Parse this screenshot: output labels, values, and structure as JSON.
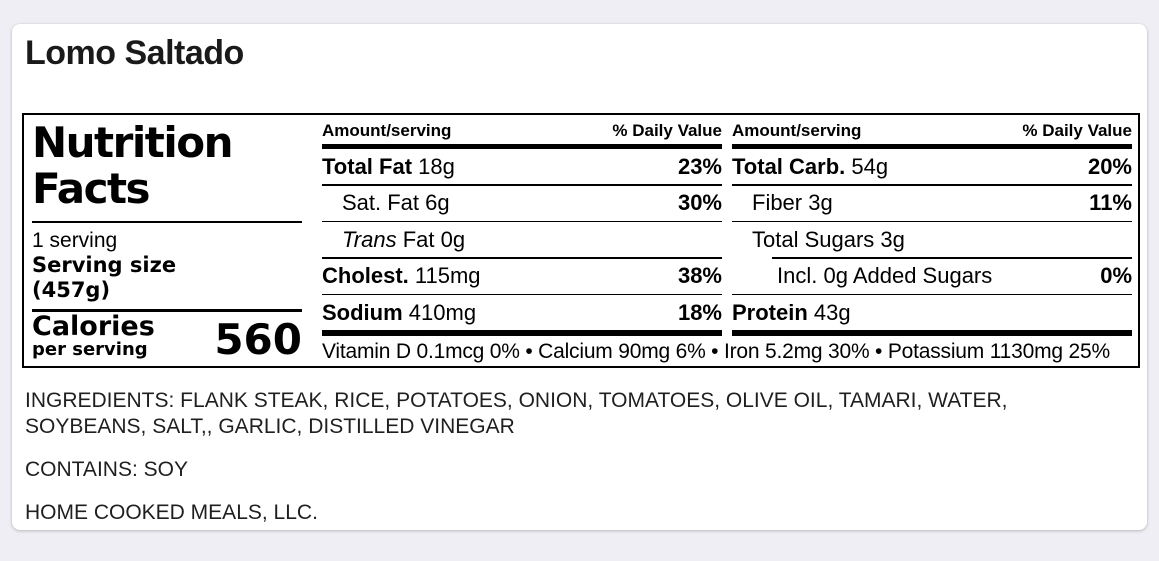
{
  "title": "Lomo Saltado",
  "colors": {
    "page_background": "#efeef4",
    "card_background": "#ffffff",
    "label_ink": "#000000"
  },
  "nutrition": {
    "heading_line1": "Nutrition",
    "heading_line2": "Facts",
    "servings": "1 serving",
    "serving_size_label": "Serving size",
    "serving_size_value": "(457g)",
    "calories_label": "Calories",
    "calories_sublabel": "per serving",
    "calories_value": "560",
    "col_header_amount": "Amount/serving",
    "col_header_dv": "% Daily Value",
    "left_col_rows": [
      {
        "label": "Total Fat",
        "bold": true,
        "italic": false,
        "rest": "18g",
        "dv": "23%",
        "indent": 0
      },
      {
        "label": "Sat. Fat",
        "bold": false,
        "italic": false,
        "rest": "6g",
        "dv": "30%",
        "indent": 1
      },
      {
        "label": "Trans",
        "bold": false,
        "italic": true,
        "rest": "Fat 0g",
        "dv": "",
        "indent": 1
      },
      {
        "label": "Cholest.",
        "bold": true,
        "italic": false,
        "rest": "115mg",
        "dv": "38%",
        "indent": 0
      },
      {
        "label": "Sodium",
        "bold": true,
        "italic": false,
        "rest": "410mg",
        "dv": "18%",
        "indent": 0
      }
    ],
    "right_col_rows": [
      {
        "label": "Total Carb.",
        "bold": true,
        "italic": false,
        "rest": "54g",
        "dv": "20%",
        "indent": 0
      },
      {
        "label": "Fiber",
        "bold": false,
        "italic": false,
        "rest": "3g",
        "dv": "11%",
        "indent": 1
      },
      {
        "label": "Total Sugars",
        "bold": false,
        "italic": false,
        "rest": "3g",
        "dv": "",
        "indent": 1
      },
      {
        "label": "Incl. 0g Added Sugars",
        "bold": false,
        "italic": false,
        "rest": "",
        "dv": "0%",
        "indent": 2,
        "rule_above_indent": 40
      },
      {
        "label": "Protein",
        "bold": true,
        "italic": false,
        "rest": "43g",
        "dv": "",
        "indent": 0
      }
    ],
    "micronutrients": "Vitamin D 0.1mcg 0% • Calcium 90mg 6% • Iron 5.2mg 30% • Potassium 1130mg 25%"
  },
  "ingredients": "INGREDIENTS: FLANK STEAK, RICE, POTATOES, ONION, TOMATOES, OLIVE OIL, TAMARI, WATER, SOYBEANS, SALT,, GARLIC, DISTILLED VINEGAR",
  "contains": "CONTAINS: SOY",
  "manufacturer": "HOME COOKED MEALS, LLC."
}
